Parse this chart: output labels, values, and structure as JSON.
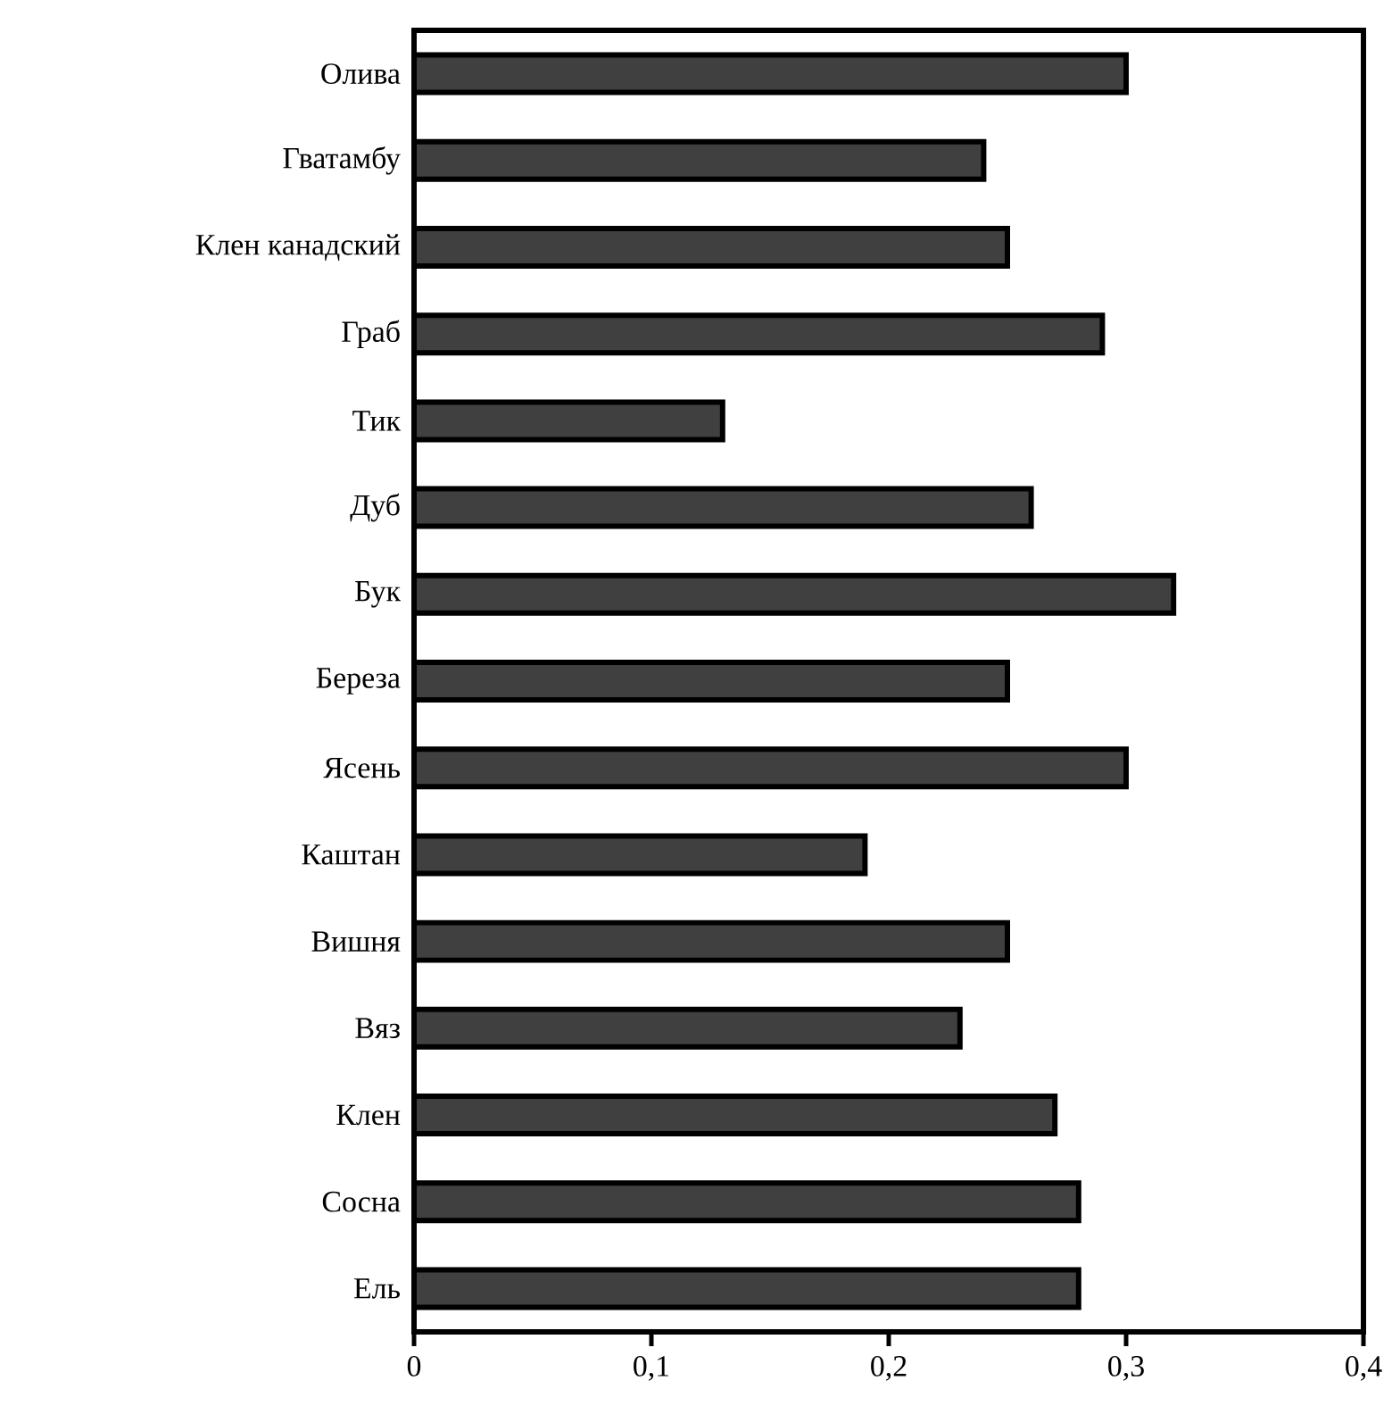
{
  "chart_data": {
    "type": "bar",
    "orientation": "horizontal",
    "categories": [
      "Олива",
      "Гватамбу",
      "Клен канадский",
      "Граб",
      "Тик",
      "Дуб",
      "Бук",
      "Береза",
      "Ясень",
      "Каштан",
      "Вишня",
      "Вяз",
      "Клен",
      "Сосна",
      "Ель"
    ],
    "values": [
      0.3,
      0.24,
      0.25,
      0.29,
      0.13,
      0.26,
      0.32,
      0.25,
      0.3,
      0.19,
      0.25,
      0.23,
      0.27,
      0.28,
      0.28
    ],
    "color": "#404040",
    "xlim": [
      0,
      0.4
    ],
    "xticks": [
      {
        "value": 0,
        "label": "0"
      },
      {
        "value": 0.1,
        "label": "0,1"
      },
      {
        "value": 0.2,
        "label": "0,2"
      },
      {
        "value": 0.3,
        "label": "0,3"
      },
      {
        "value": 0.4,
        "label": "0,4"
      }
    ]
  }
}
